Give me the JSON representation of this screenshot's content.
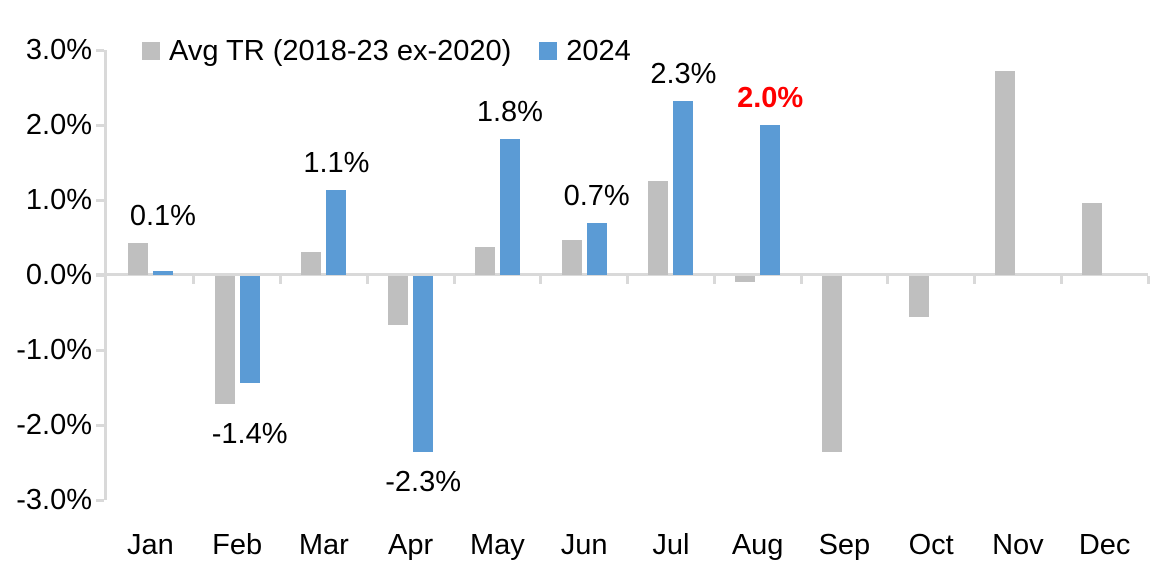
{
  "chart_data": {
    "type": "bar",
    "title": "",
    "categories": [
      "Jan",
      "Feb",
      "Mar",
      "Apr",
      "May",
      "Jun",
      "Jul",
      "Aug",
      "Sep",
      "Oct",
      "Nov",
      "Dec"
    ],
    "y_axis": {
      "unit": "%",
      "min": -3.0,
      "max": 3.0,
      "tick_step": 1.0,
      "tick_labels": [
        "3.0%",
        "2.0%",
        "1.0%",
        "0.0%",
        "-1.0%",
        "-2.0%",
        "-3.0%"
      ],
      "tick_values": [
        3,
        2,
        1,
        0,
        -1,
        -2,
        -3
      ]
    },
    "grid": false,
    "legend_position": "top",
    "series": [
      {
        "name": "Avg TR (2018-23 ex-2020)",
        "color": "#BFBFBF",
        "values": [
          0.43,
          -1.7,
          0.31,
          -0.65,
          0.37,
          0.47,
          1.25,
          -0.08,
          -2.35,
          -0.55,
          2.72,
          0.96
        ]
      },
      {
        "name": "2024",
        "color": "#5B9BD5",
        "values": [
          0.05,
          -1.43,
          1.14,
          -2.35,
          1.82,
          0.69,
          2.32,
          2.0,
          null,
          null,
          null,
          null
        ],
        "data_labels": [
          {
            "text": "0.1%",
            "color": "#000000",
            "bold": false
          },
          {
            "text": "-1.4%",
            "color": "#000000",
            "bold": false
          },
          {
            "text": "1.1%",
            "color": "#000000",
            "bold": false
          },
          {
            "text": "-2.3%",
            "color": "#000000",
            "bold": false
          },
          {
            "text": "1.8%",
            "color": "#000000",
            "bold": false
          },
          {
            "text": "0.7%",
            "color": "#000000",
            "bold": false
          },
          {
            "text": "2.3%",
            "color": "#000000",
            "bold": false
          },
          {
            "text": "2.0%",
            "color": "#FF0000",
            "bold": true
          }
        ]
      }
    ],
    "colors": {
      "axis_line": "#D9D9D9",
      "text": "#000000",
      "highlight": "#FF0000"
    }
  }
}
